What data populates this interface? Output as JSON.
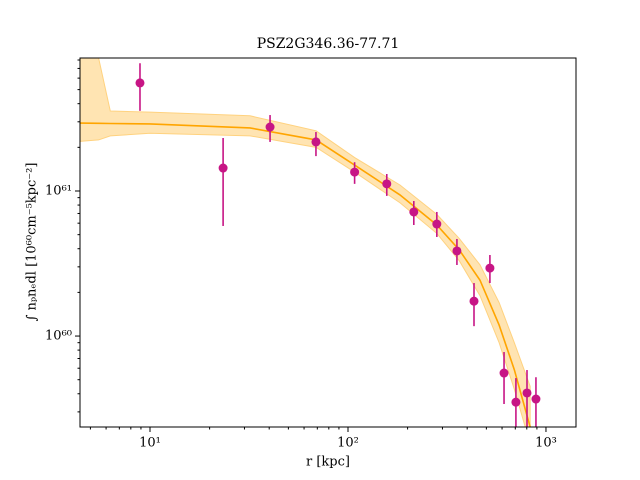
{
  "chart_data": {
    "type": "scatter",
    "title": "PSZ2G346.36-77.71",
    "xlabel": "r [kpc]",
    "ylabel": "∫ nₚnₑdl [10⁶⁰cm⁻⁵kpc⁻²]",
    "xscale": "log",
    "yscale": "log",
    "xlim": [
      4.43,
      1418
    ],
    "ylim": [
      2.36e+59,
      8.26e+61
    ],
    "xticks": [
      {
        "value": 10,
        "label": "10¹"
      },
      {
        "value": 100,
        "label": "10²"
      },
      {
        "value": 1000,
        "label": "10³"
      }
    ],
    "yticks": [
      {
        "value": 1e+60,
        "label": "10⁶⁰"
      },
      {
        "value": 1e+61,
        "label": "10⁶¹"
      }
    ],
    "xminorticks": [
      5,
      6,
      7,
      8,
      9,
      20,
      30,
      40,
      50,
      60,
      70,
      80,
      90,
      200,
      300,
      400,
      500,
      600,
      700,
      800,
      900
    ],
    "yminorticks": [
      3e+59,
      4e+59,
      5e+59,
      6e+59,
      7e+59,
      8e+59,
      9e+59,
      2e+60,
      3e+60,
      4e+60,
      5e+60,
      6e+60,
      7e+60,
      8e+60,
      9e+60,
      2e+61,
      3e+61,
      4e+61,
      5e+61,
      6e+61,
      7e+61,
      8e+61
    ],
    "points": {
      "color": "#c71585",
      "x": [
        8.9,
        23.4,
        40.4,
        68.9,
        108,
        157,
        215,
        281,
        355,
        433,
        521,
        614,
        705,
        802,
        890
      ],
      "values": [
        5.56e+61,
        1.44e+61,
        2.76e+61,
        2.18e+61,
        1.35e+61,
        1.12e+61,
        7.17e+60,
        5.92e+60,
        3.86e+60,
        1.74e+60,
        2.94e+60,
        5.56e+59,
        3.5e+59,
        4.05e+59,
        3.68e+59
      ],
      "lower": [
        3.57e+61,
        5.74e+60,
        2.18e+61,
        1.74e+61,
        1.12e+61,
        9.25e+60,
        5.83e+60,
        4.82e+60,
        3.09e+60,
        1.17e+60,
        2.32e+60,
        3.4e+59,
        2.2e+59,
        2.2e+59,
        2.2e+59
      ],
      "upper": [
        7.6e+61,
        2.32e+61,
        3.34e+61,
        2.55e+61,
        1.58e+61,
        1.31e+61,
        8.53e+60,
        7.17e+60,
        4.67e+60,
        2.32e+60,
        3.62e+60,
        7.76e+59,
        5.13e+59,
        5.83e+59,
        5.2e+59
      ]
    },
    "model": {
      "color": "#ffa500",
      "band_color": "#ffd27f",
      "x": [
        4.43,
        5.5,
        6.3,
        10,
        32,
        69,
        108,
        183,
        281,
        365,
        464,
        580,
        692,
        832
      ],
      "values": [
        2.94e+61,
        2.93e+61,
        2.92e+61,
        2.9e+61,
        2.72e+61,
        2.25e+61,
        1.51e+61,
        9.4e+60,
        5.83e+60,
        3.92e+60,
        2.43e+60,
        1.19e+60,
        5.86e+59,
        2.36e+59
      ],
      "band_upper": [
        8.26e+61,
        8.26e+61,
        3.56e+61,
        3.5e+61,
        3.3e+61,
        2.6e+61,
        1.7e+61,
        1.1e+61,
        6.9e+60,
        4.7e+60,
        3.1e+60,
        1.7e+60,
        9e+59,
        4.5e+59
      ],
      "band_lower": [
        2.2e+61,
        2.25e+61,
        2.4e+61,
        2.5e+61,
        2.4e+61,
        2e+61,
        1.35e+61,
        8.3e+60,
        5.1e+60,
        3.3e+60,
        1.9e+60,
        9e+59,
        4.3e+59,
        1.8e+59
      ]
    }
  }
}
